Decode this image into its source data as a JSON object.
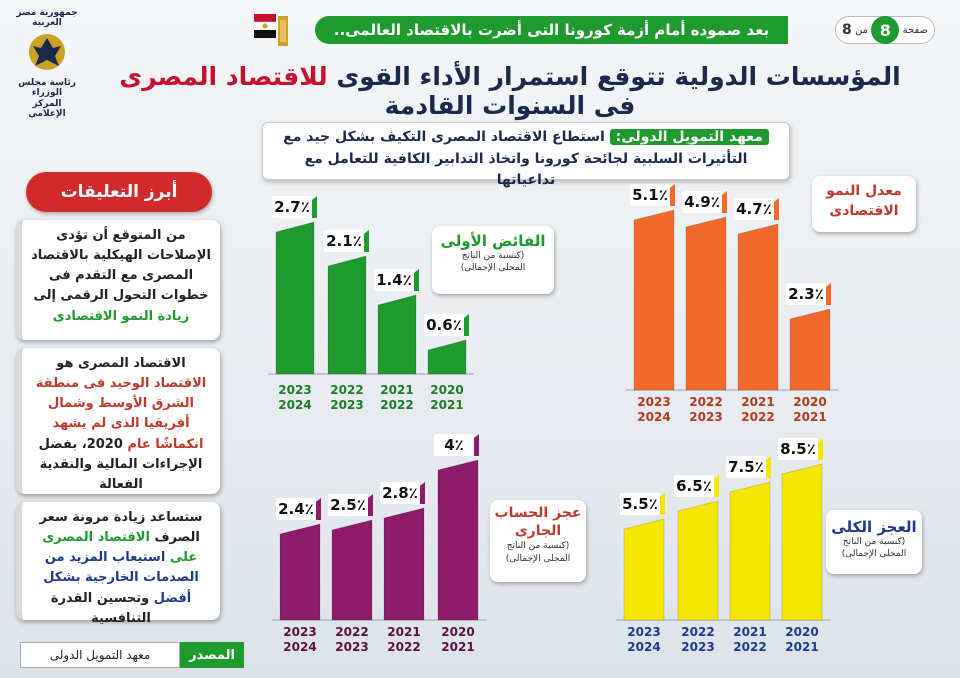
{
  "header": {
    "banner": "بعد صموده أمام أزمة كورونا التى أضرت بالاقتصاد العالمى..",
    "page_word": "صفحة",
    "page_current": "8",
    "page_of": "من",
    "page_total": "8",
    "logo_line1": "جمهورية مصر العربية",
    "logo_line2": "رئاسة مجلس الوزراء",
    "logo_line3": "المركز الإعلامي"
  },
  "title": {
    "part1": "المؤسسات الدولية تتوقع استمرار الأداء القوى ",
    "part2": "للاقتصاد المصرى",
    "part3": " فى السنوات القادمة"
  },
  "callout": {
    "tag": "معهد التمويل الدولى:",
    "line1": " استطاع الاقتصاد المصرى التكيف بشكل جيد مع",
    "line2": "التأثيرات السلبية لجائحة كورونا واتخاذ التدابير الكافية للتعامل مع تداعياتها"
  },
  "sidebar": {
    "title": "أبرز التعليقات",
    "card1": {
      "a": "من المتوقع أن تؤدى الإصلاحات الهيكلية بالاقتصاد المصرى مع التقدم فى خطوات التحول الرقمى إلى",
      "b": "زيادة النمو الاقتصادى"
    },
    "card2": {
      "a": "الاقتصاد المصرى هو",
      "b": "الاقتصاد الوحيد فى منطقة الشرق الأوسط وشمال أفريقيا الذى لم يشهد انكماشًا عام",
      "c": "2020، بفضل الإجراءات المالية والنقدية الفعالة"
    },
    "card3": {
      "a": "ستساعد زيادة مرونة سعر الصرف",
      "b": "الاقتصاد المصرى على",
      "c": "استيعاب المزيد من الصدمات الخارجية بشكل أفضل",
      "d": "وتحسين القدرة التنافسية"
    },
    "source_label": "المصدر",
    "source_value": "معهد التمويل الدولى"
  },
  "labels": {
    "growth": "معدل النمو الاقتصادى",
    "primary": "الفائض الأولى",
    "current": "عجز الحساب الجارى",
    "deficit": "العجز الكلى",
    "gdp_note1": "(كنسبة من الناتج",
    "gdp_note2": "المحلى الإجمالى)"
  },
  "colors": {
    "green": "#1f9a2e",
    "orange": "#f26a2b",
    "purple": "#8e1a6a",
    "yellow": "#f5e600",
    "red": "#c8102e",
    "navy": "#1b2a4a"
  },
  "chart_data": [
    {
      "type": "bar",
      "title": "معدل النمو الاقتصادى",
      "categories": [
        "2020\n2021",
        "2021\n2022",
        "2022\n2023",
        "2023\n2024"
      ],
      "values": [
        2.3,
        4.7,
        4.9,
        5.1
      ],
      "value_labels": [
        "2.3٪",
        "4.7٪",
        "4.9٪",
        "5.1٪"
      ],
      "color": "#f26a2b",
      "tick_color": "#b23a1a"
    },
    {
      "type": "bar",
      "title": "الفائض الأولى",
      "categories": [
        "2020\n2021",
        "2021\n2022",
        "2022\n2023",
        "2023\n2024"
      ],
      "values": [
        0.6,
        1.4,
        2.1,
        2.7
      ],
      "value_labels": [
        "0.6٪",
        "1.4٪",
        "2.1٪",
        "2.7٪"
      ],
      "color": "#1f9a2e",
      "tick_color": "#1f7a2a"
    },
    {
      "type": "bar",
      "title": "العجز الكلى",
      "categories": [
        "2020\n2021",
        "2021\n2022",
        "2022\n2023",
        "2023\n2024"
      ],
      "values": [
        8.5,
        7.5,
        6.5,
        5.5
      ],
      "value_labels": [
        "8.5٪",
        "7.5٪",
        "6.5٪",
        "5.5٪"
      ],
      "color": "#f5e600",
      "tick_color": "#1e3a8a"
    },
    {
      "type": "bar",
      "title": "عجز الحساب الجارى",
      "categories": [
        "2020\n2021",
        "2021\n2022",
        "2022\n2023",
        "2023\n2024"
      ],
      "values": [
        4,
        2.8,
        2.5,
        2.4
      ],
      "value_labels": [
        "4٪",
        "2.8٪",
        "2.5٪",
        "2.4٪"
      ],
      "color": "#8e1a6a",
      "tick_color": "#5a1040"
    }
  ]
}
